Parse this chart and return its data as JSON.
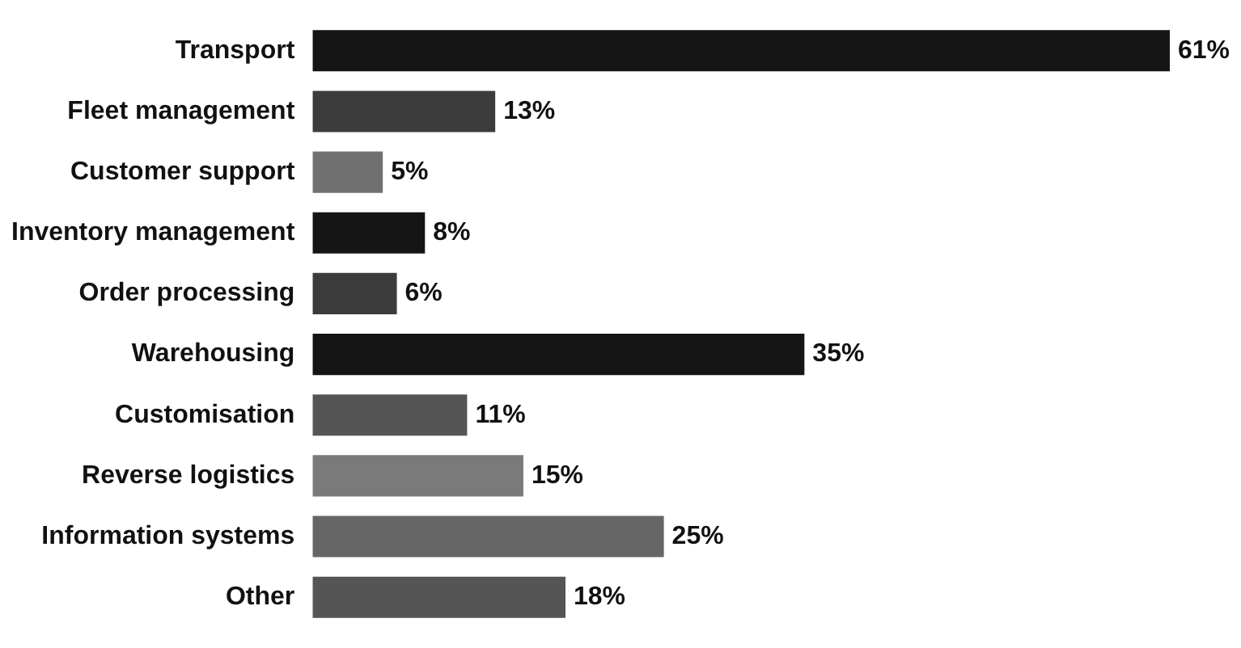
{
  "chart_data": {
    "type": "bar",
    "orientation": "horizontal",
    "categories": [
      "Transport",
      "Fleet management",
      "Customer support",
      "Inventory management",
      "Order processing",
      "Warehousing",
      "Customisation",
      "Reverse logistics",
      "Information systems",
      "Other"
    ],
    "values": [
      61,
      13,
      5,
      8,
      6,
      35,
      11,
      15,
      25,
      18
    ],
    "colors": [
      "#151515",
      "#3c3c3c",
      "#707070",
      "#151515",
      "#3c3c3c",
      "#151515",
      "#555555",
      "#7a7a7a",
      "#666666",
      "#555555"
    ],
    "data_labels": true,
    "value_labels": [
      "61%",
      "13%",
      "5%",
      "8%",
      "6%",
      "35%",
      "11%",
      "15%",
      "25%",
      "18%"
    ],
    "grid": false,
    "legend": false
  }
}
